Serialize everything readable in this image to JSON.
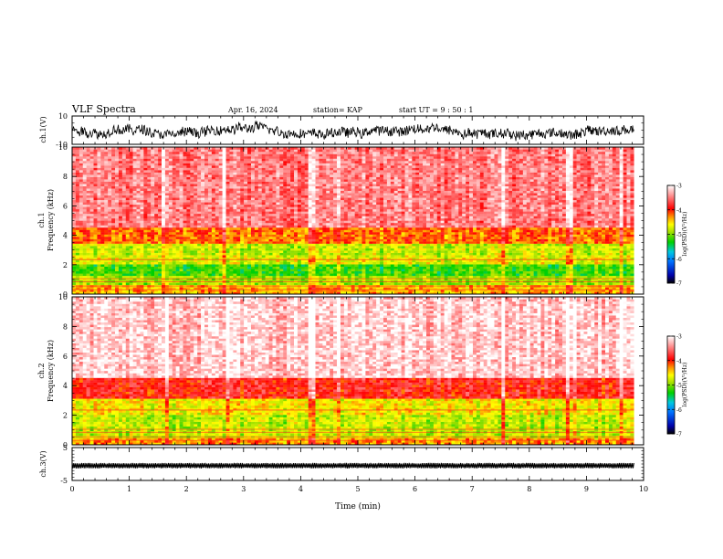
{
  "header": {
    "title": "VLF Spectra",
    "date": "Apr. 16, 2024",
    "station": "station= KAP",
    "start": "start  UT =  9 : 50 : 1"
  },
  "chart_data": [
    {
      "type": "line",
      "panel": "ch1-waveform",
      "ylabel": "ch.1(V)",
      "ylim": [
        -10,
        10
      ],
      "y_ticks": [
        "10",
        "-10"
      ],
      "xlim": [
        0,
        10
      ],
      "x_data_end": 9.83,
      "trace_color": "#000000"
    },
    {
      "type": "heatmap",
      "panel": "ch1-spectrogram",
      "ylabel": "ch.1\nFrequency (kHz)",
      "ylim": [
        0,
        10
      ],
      "y_ticks": [
        "0",
        "2",
        "4",
        "6",
        "8",
        "10"
      ],
      "xlim": [
        0,
        10
      ],
      "x_data_end": 9.83,
      "colorbar": {
        "label": "log(PSD)(V²/Hz)",
        "range": [
          -7,
          -3
        ],
        "ticks": [
          "-3",
          "-4",
          "-5",
          "-6",
          "-7"
        ]
      },
      "band_profile": [
        {
          "f": [
            0.0,
            0.6
          ],
          "level": -4.4
        },
        {
          "f": [
            0.6,
            1.2
          ],
          "level": -4.9
        },
        {
          "f": [
            1.2,
            2.1
          ],
          "level": -5.2
        },
        {
          "f": [
            2.1,
            2.6
          ],
          "level": -4.7
        },
        {
          "f": [
            2.6,
            3.4
          ],
          "level": -4.8
        },
        {
          "f": [
            3.4,
            4.6
          ],
          "level": -4.2
        },
        {
          "f": [
            4.6,
            10.0
          ],
          "level": -3.5
        }
      ],
      "quiet_times_min": [
        1.58,
        2.66,
        4.13,
        4.22,
        4.62,
        7.5,
        8.62,
        8.7,
        9.6
      ]
    },
    {
      "type": "heatmap",
      "panel": "ch2-spectrogram",
      "ylabel": "ch.2\nFrequency (kHz)",
      "ylim": [
        0,
        10
      ],
      "y_ticks": [
        "0",
        "2",
        "4",
        "6",
        "8",
        "10"
      ],
      "xlim": [
        0,
        10
      ],
      "x_data_end": 9.83,
      "colorbar": {
        "label": "log(PSD)(V²/Hz)",
        "range": [
          -7,
          -3
        ],
        "ticks": [
          "-3",
          "-4",
          "-5",
          "-6",
          "-7"
        ]
      },
      "band_profile": [
        {
          "f": [
            0.0,
            0.5
          ],
          "level": -4.3
        },
        {
          "f": [
            0.5,
            2.0
          ],
          "level": -4.8
        },
        {
          "f": [
            2.0,
            3.1
          ],
          "level": -4.6
        },
        {
          "f": [
            3.1,
            4.5
          ],
          "level": -3.9
        },
        {
          "f": [
            4.5,
            10.0
          ],
          "level": -3.2
        }
      ],
      "quiet_times_min": [
        1.6,
        2.7,
        4.13,
        4.22,
        4.65,
        7.5,
        8.62,
        8.75,
        9.6
      ]
    },
    {
      "type": "line",
      "panel": "ch3-waveform",
      "ylabel": "ch.3(V)",
      "ylim": [
        -5,
        5
      ],
      "y_ticks": [
        "5",
        "-5"
      ],
      "y_center": -0.5,
      "xlim": [
        0,
        10
      ],
      "x_data_end": 9.83,
      "xlabel": "Time (min)",
      "x_ticks": [
        "0",
        "1",
        "2",
        "3",
        "4",
        "5",
        "6",
        "7",
        "8",
        "9",
        "10"
      ],
      "trace_color": "#000000"
    }
  ]
}
